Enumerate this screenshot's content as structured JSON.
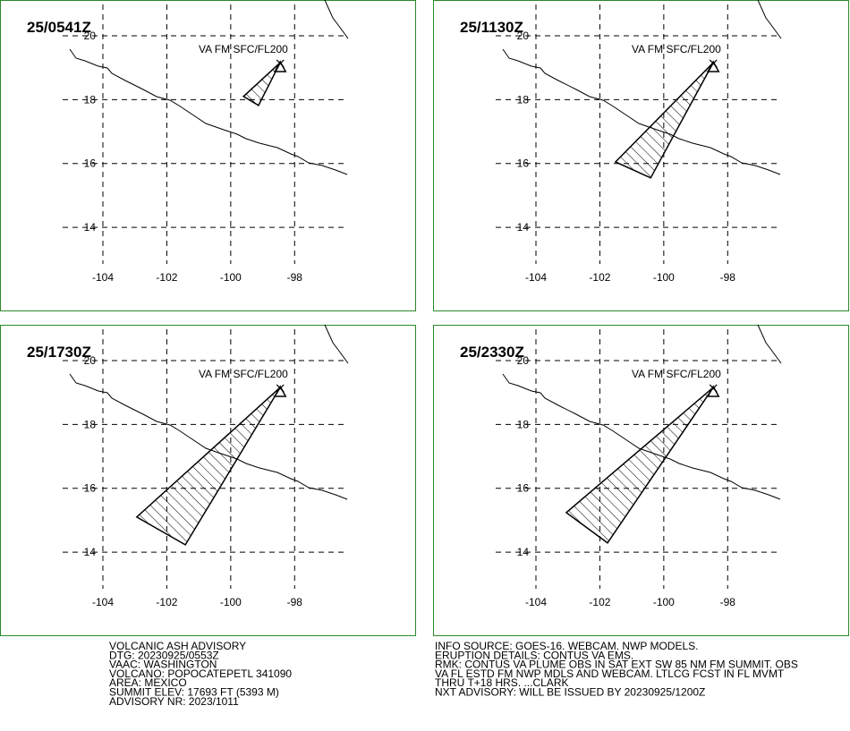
{
  "map": {
    "xlim": [
      -107.22,
      -94.2
    ],
    "ylim": [
      11.37,
      21.12
    ],
    "xticks": [
      -104,
      -102,
      -100,
      -98
    ],
    "yticks": [
      20,
      18,
      16,
      14
    ],
    "panels": [
      {
        "time": "25/0541Z",
        "label": "VA FM SFC/FL200",
        "vent_lon": -98.45,
        "vent_lat": 19.02,
        "plume_lon": [
          -98.45,
          -99.6,
          -99.13
        ],
        "plume_lat": [
          19.16,
          18.1,
          17.82
        ]
      },
      {
        "time": "25/1130Z",
        "label": "VA FM SFC/FL200",
        "vent_lon": -98.45,
        "vent_lat": 19.02,
        "plume_lon": [
          -98.45,
          -101.51,
          -100.41
        ],
        "plume_lat": [
          19.16,
          16.05,
          15.55
        ]
      },
      {
        "time": "25/1730Z",
        "label": "VA FM SFC/FL200",
        "vent_lon": -98.45,
        "vent_lat": 19.02,
        "plume_lon": [
          -98.45,
          -102.94,
          -101.42
        ],
        "plume_lat": [
          19.16,
          15.1,
          14.23
        ]
      },
      {
        "time": "25/2330Z",
        "label": "VA FM SFC/FL200",
        "vent_lon": -98.45,
        "vent_lat": 19.02,
        "plume_lon": [
          -98.45,
          -103.05,
          -101.76
        ],
        "plume_lat": [
          19.16,
          15.24,
          14.29
        ]
      }
    ]
  },
  "advisory_left": [
    "VOLCANIC ASH ADVISORY",
    "DTG: 20230925/0553Z",
    "VAAC: WASHINGTON",
    "VOLCANO: POPOCATEPETL 341090",
    "AREA: MEXICO",
    "SUMMIT ELEV: 17693 FT (5393 M)",
    "ADVISORY NR: 2023/1011"
  ],
  "advisory_right": [
    "INFO SOURCE: GOES-16. WEBCAM. NWP MODELS.",
    "ERUPTION DETAILS: CONTUS VA EMS.",
    "RMK: CONTUS VA PLUME OBS IN SAT EXT SW 85 NM FM SUMMIT. OBS",
    "VA FL ESTD FM NWP MDLS AND WEBCAM. LTLCG FCST IN FL MVMT",
    "THRU T+18 HRS. ...CLARK",
    "NXT ADVISORY: WILL BE ISSUED BY 20230925/1200Z"
  ]
}
